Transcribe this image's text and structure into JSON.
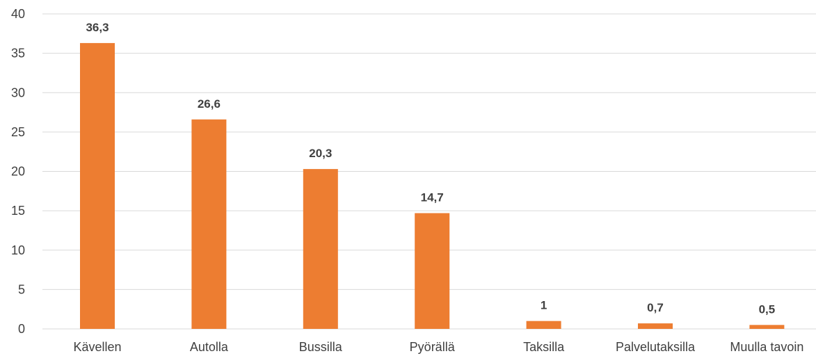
{
  "chart_data": {
    "type": "bar",
    "categories": [
      "Kävellen",
      "Autolla",
      "Bussilla",
      "Pyörällä",
      "Taksilla",
      "Palvelutaksilla",
      "Muulla tavoin"
    ],
    "values": [
      36.3,
      26.6,
      20.3,
      14.7,
      1,
      0.7,
      0.5
    ],
    "data_labels": [
      "36,3",
      "26,6",
      "20,3",
      "14,7",
      "1",
      "0,7",
      "0,5"
    ],
    "yticks": [
      0,
      5,
      10,
      15,
      20,
      25,
      30,
      35,
      40
    ],
    "ylim": [
      0,
      40
    ],
    "grid": true,
    "bar_color": "#ED7D31",
    "title": "",
    "xlabel": "",
    "ylabel": ""
  }
}
